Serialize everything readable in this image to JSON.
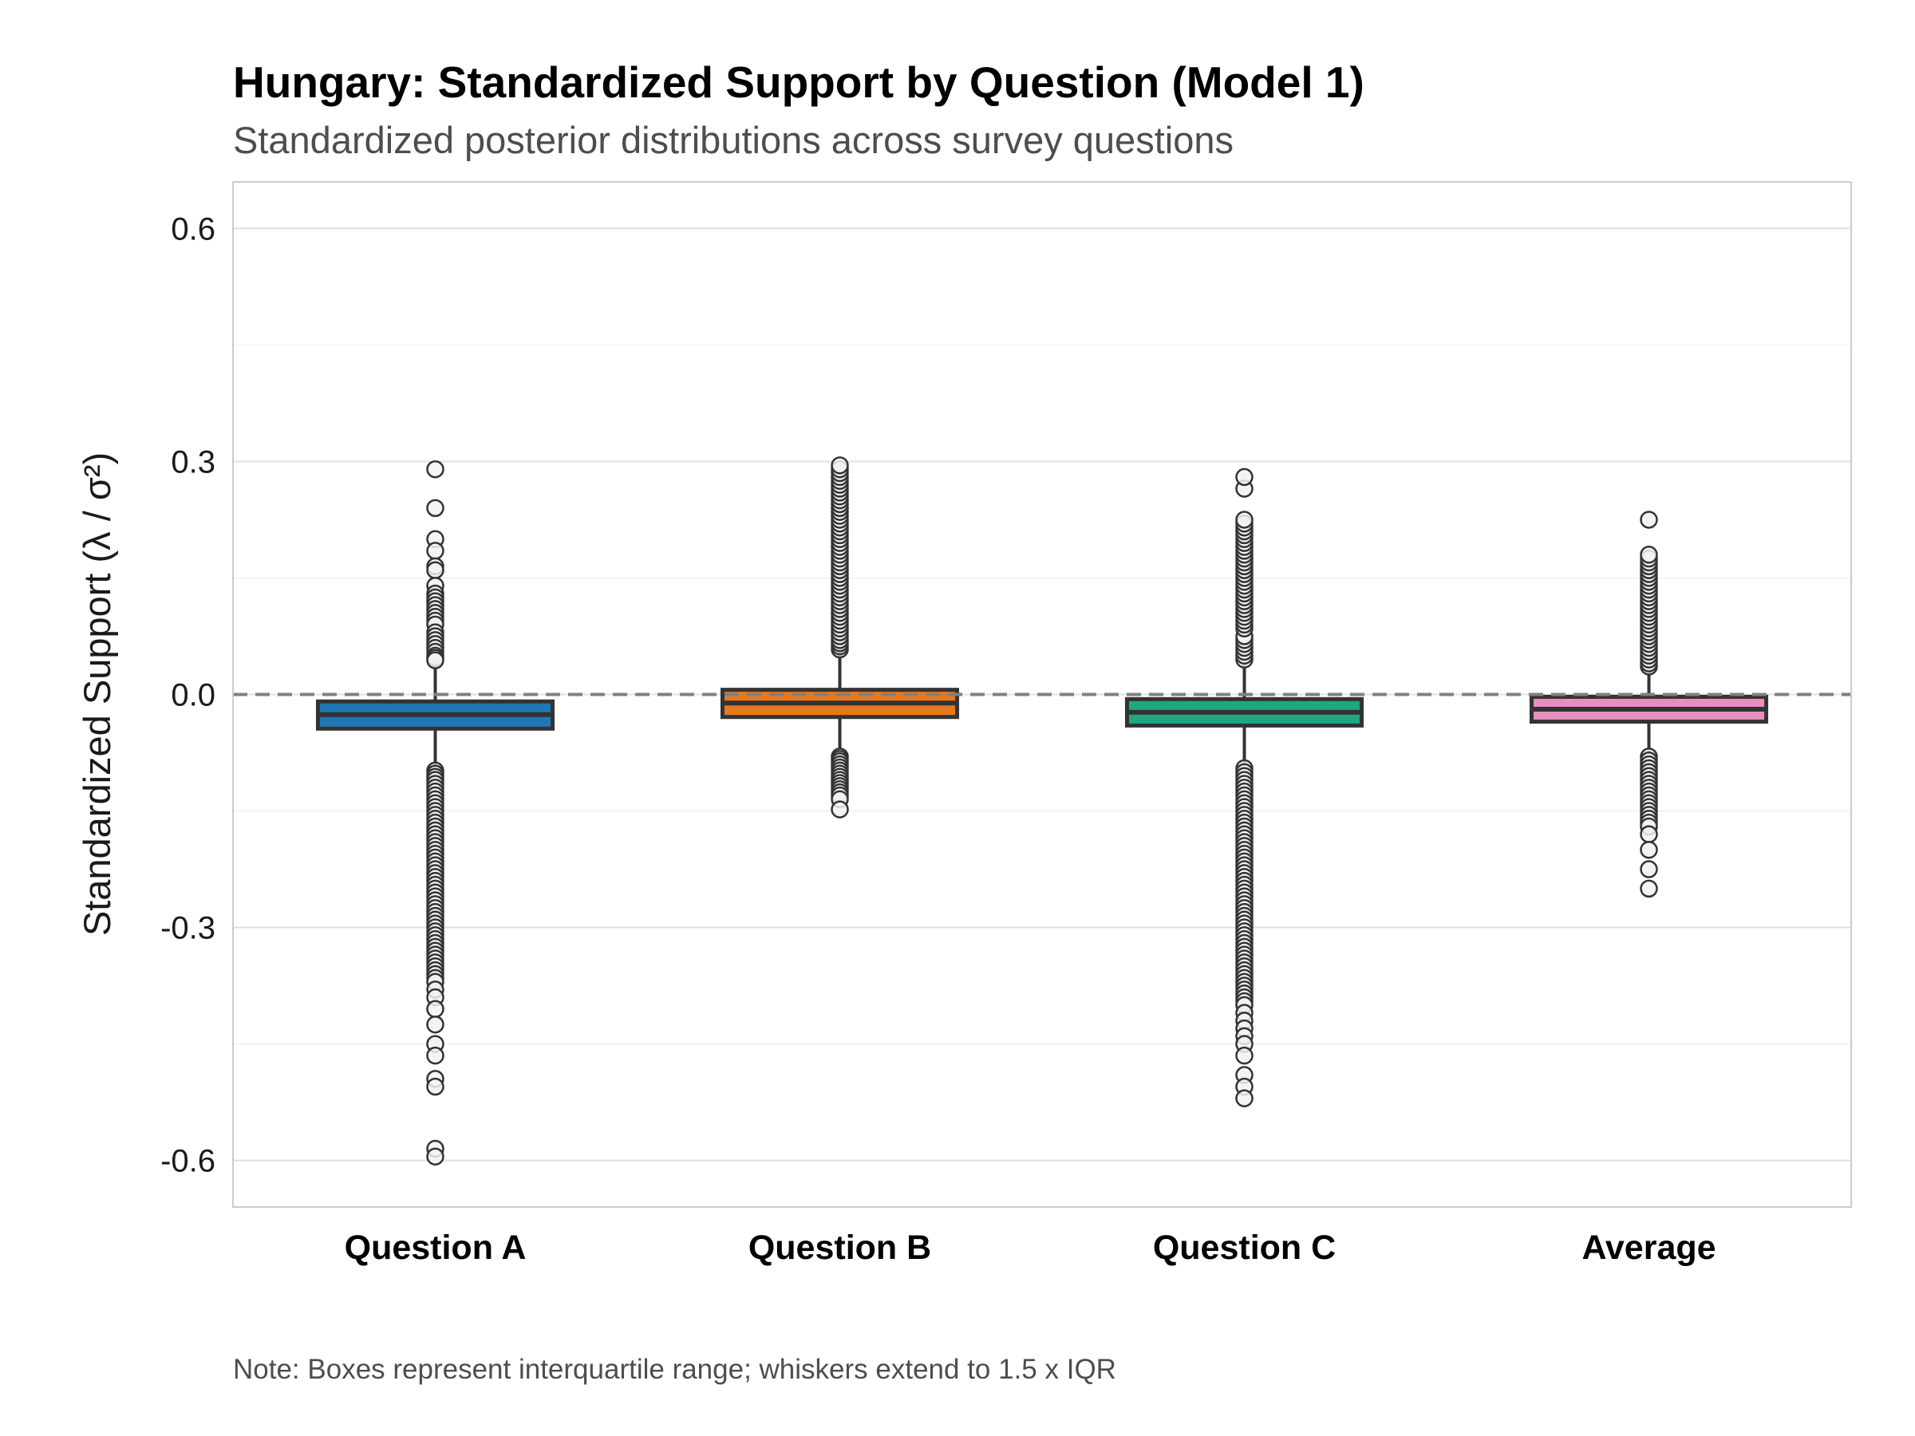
{
  "chart_data": {
    "type": "boxplot",
    "title": "Hungary: Standardized Support by Question (Model 1)",
    "subtitle": "Standardized posterior distributions across survey questions",
    "ylabel": "Standardized Support (λ / σ²)",
    "xlabel": "",
    "ylim": [
      -0.66,
      0.66
    ],
    "yticks": [
      0.6,
      0.3,
      0.0,
      -0.3,
      -0.6
    ],
    "ytick_labels": [
      "0.6",
      "0.3",
      "0.0",
      "-0.3",
      "-0.6"
    ],
    "grid": true,
    "reference_line": {
      "y": 0.0,
      "style": "dashed",
      "color": "#808080"
    },
    "caption": "Note: Boxes represent interquartile range; whiskers extend to 1.5 x IQR",
    "categories": [
      "Question A",
      "Question B",
      "Question C",
      "Average"
    ],
    "series": [
      {
        "category": "Question A",
        "color": "#1f77b4",
        "q1": -0.044,
        "median": -0.026,
        "q3": -0.009,
        "whisker_low": -0.095,
        "whisker_high": 0.042,
        "outliers_high": [
          0.29,
          0.24,
          0.2,
          0.185,
          0.165,
          0.16,
          0.14,
          0.13,
          0.125,
          0.12,
          0.115,
          0.11,
          0.105,
          0.1,
          0.095,
          0.09,
          0.08,
          0.075,
          0.07,
          0.065,
          0.06,
          0.055,
          0.05,
          0.047,
          0.044
        ],
        "outliers_low": [
          -0.098,
          -0.102,
          -0.106,
          -0.11,
          -0.115,
          -0.12,
          -0.125,
          -0.13,
          -0.135,
          -0.14,
          -0.145,
          -0.15,
          -0.155,
          -0.16,
          -0.165,
          -0.17,
          -0.175,
          -0.18,
          -0.185,
          -0.19,
          -0.195,
          -0.2,
          -0.205,
          -0.21,
          -0.215,
          -0.22,
          -0.225,
          -0.23,
          -0.235,
          -0.24,
          -0.245,
          -0.25,
          -0.255,
          -0.26,
          -0.265,
          -0.27,
          -0.275,
          -0.28,
          -0.285,
          -0.29,
          -0.295,
          -0.3,
          -0.305,
          -0.31,
          -0.315,
          -0.32,
          -0.325,
          -0.33,
          -0.335,
          -0.34,
          -0.345,
          -0.35,
          -0.355,
          -0.36,
          -0.365,
          -0.37,
          -0.38,
          -0.39,
          -0.405,
          -0.425,
          -0.45,
          -0.465,
          -0.495,
          -0.505,
          -0.585,
          -0.595
        ]
      },
      {
        "category": "Question B",
        "color": "#e6781e",
        "q1": -0.029,
        "median": -0.011,
        "q3": 0.006,
        "whisker_low": -0.078,
        "whisker_high": 0.055,
        "outliers_high": [
          0.058,
          0.062,
          0.066,
          0.07,
          0.075,
          0.08,
          0.085,
          0.09,
          0.095,
          0.1,
          0.105,
          0.11,
          0.115,
          0.12,
          0.125,
          0.13,
          0.135,
          0.14,
          0.145,
          0.15,
          0.155,
          0.16,
          0.165,
          0.17,
          0.175,
          0.18,
          0.185,
          0.19,
          0.195,
          0.2,
          0.205,
          0.21,
          0.215,
          0.22,
          0.225,
          0.23,
          0.235,
          0.24,
          0.245,
          0.25,
          0.255,
          0.26,
          0.265,
          0.27,
          0.275,
          0.28,
          0.285,
          0.29,
          0.295
        ],
        "outliers_low": [
          -0.08,
          -0.083,
          -0.086,
          -0.09,
          -0.094,
          -0.098,
          -0.102,
          -0.106,
          -0.11,
          -0.114,
          -0.118,
          -0.122,
          -0.126,
          -0.13,
          -0.135,
          -0.148
        ]
      },
      {
        "category": "Question C",
        "color": "#1ea882",
        "q1": -0.04,
        "median": -0.023,
        "q3": -0.006,
        "whisker_low": -0.092,
        "whisker_high": 0.043,
        "outliers_high": [
          0.045,
          0.05,
          0.055,
          0.06,
          0.065,
          0.07,
          0.075,
          0.085,
          0.09,
          0.095,
          0.1,
          0.105,
          0.11,
          0.115,
          0.12,
          0.125,
          0.13,
          0.135,
          0.14,
          0.145,
          0.15,
          0.155,
          0.16,
          0.165,
          0.17,
          0.175,
          0.18,
          0.185,
          0.19,
          0.195,
          0.2,
          0.205,
          0.21,
          0.215,
          0.22,
          0.225,
          0.265,
          0.28
        ],
        "outliers_low": [
          -0.095,
          -0.1,
          -0.105,
          -0.11,
          -0.115,
          -0.12,
          -0.125,
          -0.13,
          -0.135,
          -0.14,
          -0.145,
          -0.15,
          -0.155,
          -0.16,
          -0.165,
          -0.17,
          -0.175,
          -0.18,
          -0.185,
          -0.19,
          -0.195,
          -0.2,
          -0.205,
          -0.21,
          -0.215,
          -0.22,
          -0.225,
          -0.23,
          -0.235,
          -0.24,
          -0.245,
          -0.25,
          -0.255,
          -0.26,
          -0.265,
          -0.27,
          -0.275,
          -0.28,
          -0.285,
          -0.29,
          -0.295,
          -0.3,
          -0.305,
          -0.31,
          -0.315,
          -0.32,
          -0.325,
          -0.33,
          -0.335,
          -0.34,
          -0.345,
          -0.35,
          -0.355,
          -0.36,
          -0.365,
          -0.37,
          -0.375,
          -0.38,
          -0.385,
          -0.39,
          -0.395,
          -0.4,
          -0.41,
          -0.42,
          -0.43,
          -0.44,
          -0.45,
          -0.465,
          -0.49,
          -0.505,
          -0.52
        ]
      },
      {
        "category": "Average",
        "color": "#e68fbf",
        "q1": -0.035,
        "median": -0.019,
        "q3": -0.003,
        "whisker_low": -0.078,
        "whisker_high": 0.033,
        "outliers_high": [
          0.036,
          0.04,
          0.045,
          0.05,
          0.055,
          0.06,
          0.065,
          0.07,
          0.075,
          0.08,
          0.085,
          0.09,
          0.095,
          0.1,
          0.105,
          0.11,
          0.115,
          0.12,
          0.125,
          0.13,
          0.135,
          0.14,
          0.145,
          0.15,
          0.155,
          0.16,
          0.165,
          0.17,
          0.175,
          0.18,
          0.225
        ],
        "outliers_low": [
          -0.08,
          -0.085,
          -0.09,
          -0.095,
          -0.1,
          -0.105,
          -0.11,
          -0.115,
          -0.12,
          -0.125,
          -0.13,
          -0.135,
          -0.14,
          -0.145,
          -0.15,
          -0.155,
          -0.16,
          -0.165,
          -0.17,
          -0.18,
          -0.2,
          -0.225,
          -0.25
        ]
      }
    ]
  }
}
